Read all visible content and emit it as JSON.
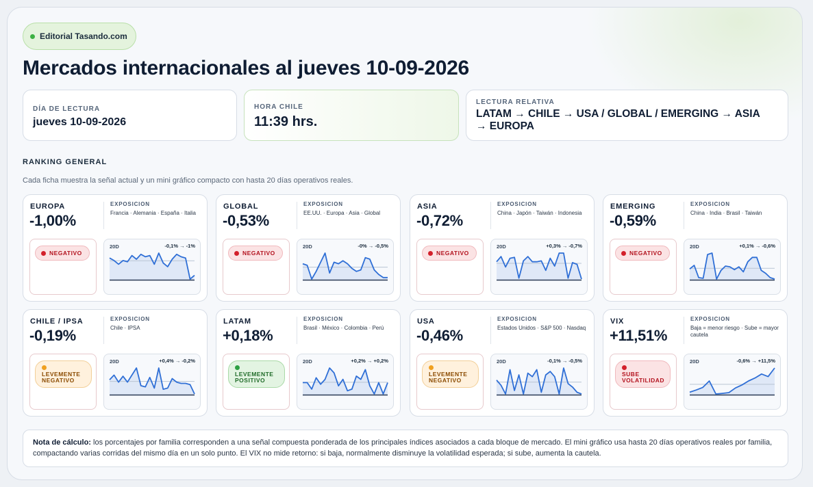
{
  "brand": "Editorial Tasando.com",
  "title": "Mercados internacionales al jueves 10-09-2026",
  "info": {
    "dia_label": "DÍA DE LECTURA",
    "dia_value": "jueves 10-09-2026",
    "hora_label": "HORA CHILE",
    "hora_value": "11:39 hrs.",
    "lectura_label": "LECTURA RELATIVA",
    "lectura_value": "LATAM → CHILE → USA / GLOBAL / EMERGING → ASIA → EUROPA"
  },
  "ranking": {
    "title": "RANKING GENERAL",
    "subtitle": "Cada ficha muestra la señal actual y un mini gráfico compacto con hasta 20 días operativos reales."
  },
  "exposure_label": "EXPOSICION",
  "window_label": "20D",
  "cards": [
    {
      "name": "EUROPA",
      "pct": "-1,00%",
      "exposure": "Francia · Alemania · España · Italia",
      "signal": "NEGATIVO",
      "signal_kind": "neg",
      "range": "-0,1% → -1%"
    },
    {
      "name": "GLOBAL",
      "pct": "-0,53%",
      "exposure": "EE.UU. · Europa · Asia · Global",
      "signal": "NEGATIVO",
      "signal_kind": "neg",
      "range": "-0% → -0,5%"
    },
    {
      "name": "ASIA",
      "pct": "-0,72%",
      "exposure": "China · Japón · Taiwán · Indonesia",
      "signal": "NEGATIVO",
      "signal_kind": "neg",
      "range": "+0,3% → -0,7%"
    },
    {
      "name": "EMERGING",
      "pct": "-0,59%",
      "exposure": "China · India · Brasil · Taiwán",
      "signal": "NEGATIVO",
      "signal_kind": "neg",
      "range": "+0,1% → -0,6%"
    },
    {
      "name": "CHILE / IPSA",
      "pct": "-0,19%",
      "exposure": "Chile · IPSA",
      "signal": "LEVEMENTE NEGATIVO",
      "signal_kind": "warn",
      "range": "+0,4% → -0,2%"
    },
    {
      "name": "LATAM",
      "pct": "+0,18%",
      "exposure": "Brasil · México · Colombia · Perú",
      "signal": "LEVEMENTE POSITIVO",
      "signal_kind": "pos",
      "range": "+0,2% → +0,2%"
    },
    {
      "name": "USA",
      "pct": "-0,46%",
      "exposure": "Estados Unidos · S&P 500 · Nasdaq",
      "signal": "LEVEMENTE NEGATIVO",
      "signal_kind": "warn",
      "range": "-0,1% → -0,5%"
    },
    {
      "name": "VIX",
      "pct": "+11,51%",
      "exposure": "Baja = menor riesgo · Sube = mayor cautela",
      "signal": "SUBE VOLATILIDAD",
      "signal_kind": "vol",
      "range": "-0,6% → +11,5%"
    }
  ],
  "sparklines": [
    [
      -0.1,
      -0.2,
      -0.35,
      -0.2,
      -0.25,
      0.0,
      -0.15,
      0.05,
      -0.05,
      0.0,
      -0.35,
      0.1,
      -0.3,
      -0.45,
      -0.15,
      0.05,
      -0.05,
      -0.1,
      -0.95,
      -0.8
    ],
    [
      -0.05,
      -0.1,
      -0.55,
      -0.3,
      0.0,
      0.3,
      -0.35,
      0.0,
      -0.05,
      0.05,
      -0.05,
      -0.2,
      -0.3,
      -0.25,
      0.15,
      0.1,
      -0.25,
      -0.4,
      -0.5,
      -0.5
    ],
    [
      0.3,
      0.6,
      0.0,
      0.5,
      0.55,
      -0.65,
      0.35,
      0.6,
      0.3,
      0.3,
      0.35,
      -0.2,
      0.5,
      0.05,
      0.8,
      0.8,
      -0.65,
      0.25,
      0.15,
      -0.7
    ],
    [
      0.1,
      0.35,
      -0.5,
      -0.55,
      1.1,
      1.2,
      -0.6,
      0.0,
      0.3,
      0.25,
      0.05,
      0.25,
      -0.1,
      0.6,
      0.9,
      0.9,
      0.0,
      -0.2,
      -0.5,
      -0.6
    ],
    [
      0.4,
      0.6,
      0.3,
      0.55,
      0.3,
      0.6,
      0.9,
      0.15,
      0.1,
      0.5,
      0.05,
      0.9,
      0.0,
      0.05,
      0.45,
      0.3,
      0.25,
      0.25,
      0.2,
      -0.2
    ],
    [
      0.2,
      0.2,
      0.0,
      0.35,
      0.15,
      0.3,
      0.65,
      0.5,
      0.1,
      0.3,
      -0.05,
      0.0,
      0.4,
      0.3,
      0.6,
      0.1,
      -0.15,
      0.2,
      -0.15,
      0.2
    ],
    [
      -0.1,
      -0.25,
      -0.5,
      0.2,
      -0.4,
      0.05,
      -0.5,
      0.1,
      0.0,
      0.2,
      -0.45,
      0.05,
      0.15,
      0.0,
      -0.5,
      0.25,
      -0.2,
      -0.3,
      -0.45,
      -0.5
    ],
    [
      -0.6,
      0.5,
      1.8,
      5.0,
      -1.5,
      -1.2,
      -0.8,
      1.5,
      3.0,
      5.0,
      6.5,
      8.5,
      7.2,
      11.5
    ]
  ],
  "note": {
    "label": "Nota de cálculo:",
    "text": "los porcentajes por familia corresponden a una señal compuesta ponderada de los principales índices asociados a cada bloque de mercado. El mini gráfico usa hasta 20 días operativos reales por familia, compactando varias corridas del mismo día en un solo punto. El VIX no mide retorno: si baja, normalmente disminuye la volatilidad esperada; si sube, aumenta la cautela."
  }
}
